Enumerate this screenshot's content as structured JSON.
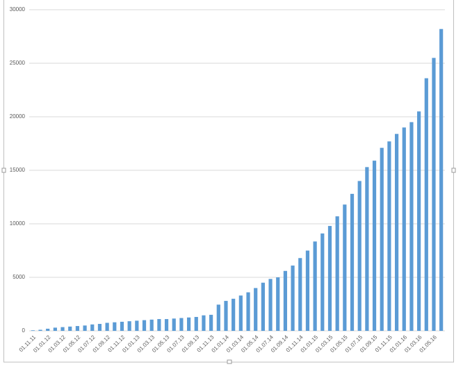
{
  "chart_data": {
    "type": "bar",
    "categories": [
      "01.11.11",
      null,
      "01.01.12",
      null,
      "01.03.12",
      null,
      "01.05.12",
      null,
      "01.07.12",
      null,
      "01.09.12",
      null,
      "01.11.12",
      null,
      "01.01.13",
      null,
      "01.03.13",
      null,
      "01.05.13",
      null,
      "01.07.13",
      null,
      "01.09.13",
      null,
      "01.11.13",
      null,
      "01.01.14",
      null,
      "01.03.14",
      null,
      "01.05.14",
      null,
      "01.07.14",
      null,
      "01.09.14",
      null,
      "01.11.14",
      null,
      "01.01.15",
      null,
      "01.03.15",
      null,
      "01.05.15",
      null,
      "01.07.15",
      null,
      "01.09.15",
      null,
      "01.11.15",
      null,
      "01.01.16",
      null,
      "01.03.16",
      null,
      "01.05.16",
      null
    ],
    "values": [
      50,
      100,
      200,
      300,
      350,
      400,
      450,
      500,
      600,
      650,
      750,
      800,
      850,
      900,
      950,
      1000,
      1050,
      1100,
      1100,
      1150,
      1200,
      1250,
      1300,
      1450,
      1500,
      2450,
      2800,
      3000,
      3300,
      3600,
      4000,
      4500,
      4850,
      5000,
      5600,
      6100,
      6800,
      7500,
      8350,
      9100,
      9800,
      10700,
      11800,
      12800,
      14000,
      15300,
      15900,
      17100,
      17700,
      18400,
      19000,
      19500,
      20500,
      23600,
      25500,
      28200
    ],
    "color": "#5b9bd5",
    "ylim": [
      0,
      30000
    ],
    "yticks": [
      0,
      5000,
      10000,
      15000,
      20000,
      25000,
      30000
    ],
    "grid": true
  }
}
